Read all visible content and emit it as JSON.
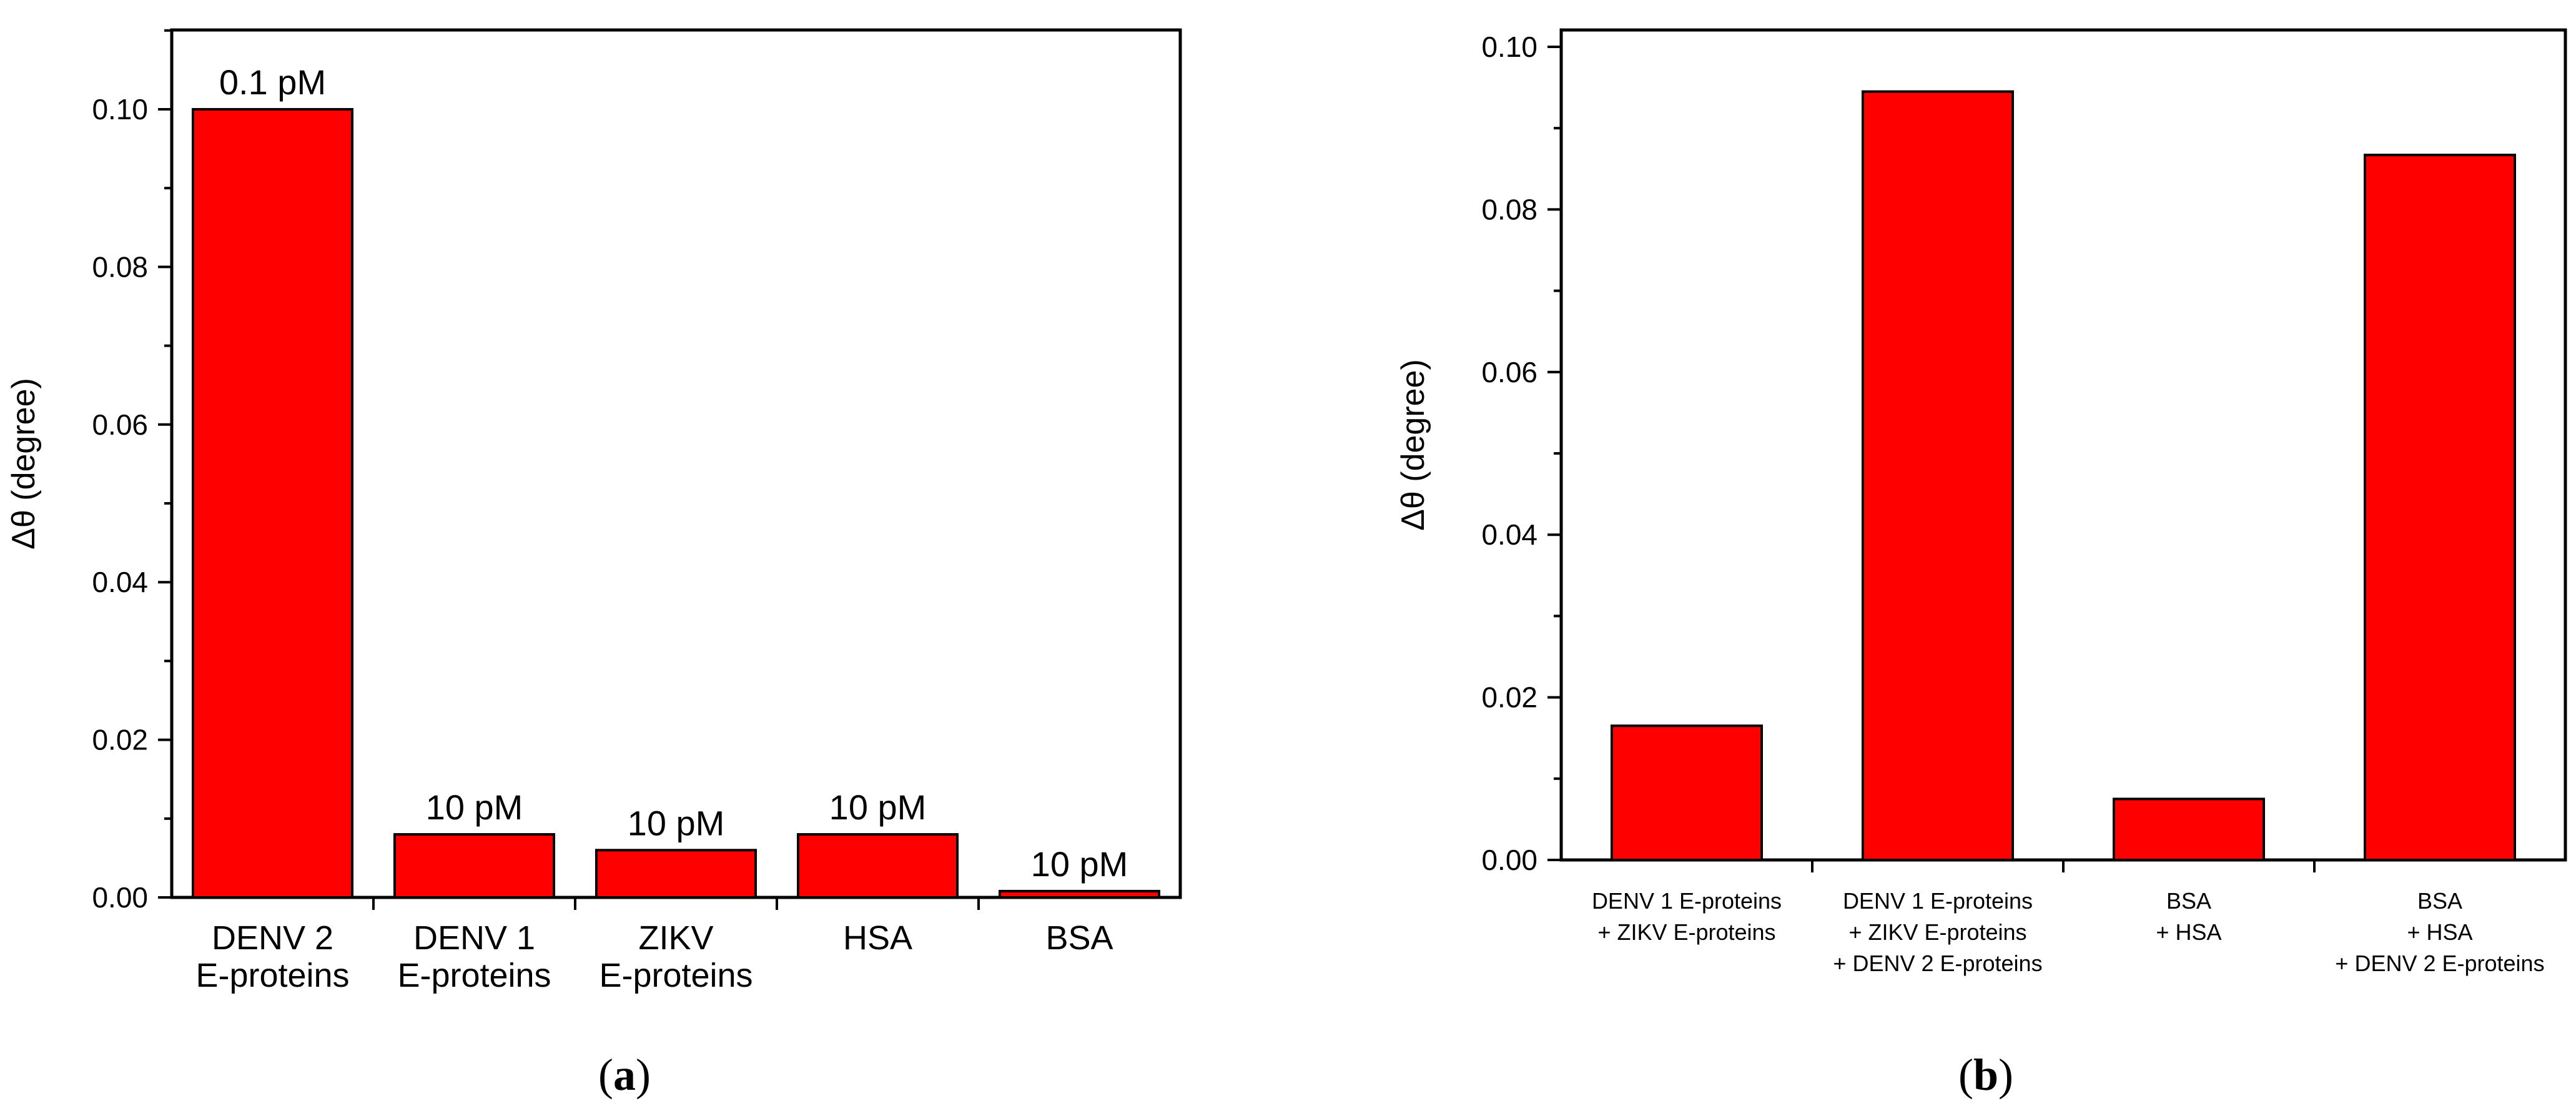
{
  "colors": {
    "bar_fill": "#ff0000",
    "bar_stroke": "#000000",
    "axis": "#000000"
  },
  "chart_data": [
    {
      "type": "bar",
      "panel_label": {
        "open": "(",
        "letter": "a",
        "close": ")"
      },
      "categories": [
        [
          "DENV 2",
          "E-proteins"
        ],
        [
          "DENV 1",
          "E-proteins"
        ],
        [
          "ZIKV",
          "E-proteins"
        ],
        [
          "HSA"
        ],
        [
          "BSA"
        ]
      ],
      "values": [
        0.1,
        0.008,
        0.006,
        0.008,
        0.0008
      ],
      "data_labels": [
        "0.1 pM",
        "10 pM",
        "10 pM",
        "10 pM",
        "10 pM"
      ],
      "ylabel": "Δθ (degree)",
      "xlabel": "",
      "title": "",
      "ylim": [
        0,
        0.1
      ],
      "yticks": [
        "0.00",
        "0.02",
        "0.04",
        "0.06",
        "0.08",
        "0.10"
      ],
      "grid": false,
      "legend": "none"
    },
    {
      "type": "bar",
      "panel_label": {
        "open": "(",
        "letter": "b",
        "close": ")"
      },
      "categories": [
        [
          "DENV 1 E-proteins",
          "+ ZIKV E-proteins"
        ],
        [
          "DENV 1 E-proteins",
          "+ ZIKV E-proteins",
          "+ DENV 2 E-proteins"
        ],
        [
          "BSA",
          "+ HSA"
        ],
        [
          "BSA",
          "+ HSA",
          "+ DENV 2 E-proteins"
        ]
      ],
      "values": [
        0.0165,
        0.0945,
        0.0075,
        0.0867
      ],
      "ylabel": "Δθ (degree)",
      "xlabel": "",
      "title": "",
      "ylim": [
        0,
        0.1
      ],
      "yticks": [
        "0.00",
        "0.02",
        "0.04",
        "0.06",
        "0.08",
        "0.10"
      ],
      "grid": false,
      "legend": "none"
    }
  ]
}
